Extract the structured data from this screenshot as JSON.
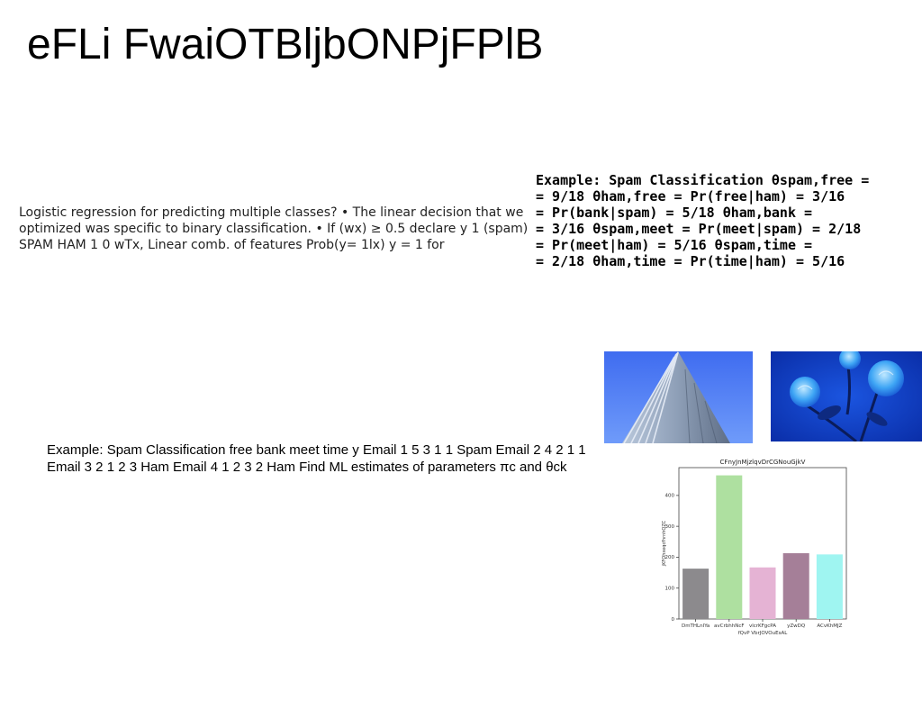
{
  "slide": {
    "title": "eFLi FwaiOTBljbONPjFPlB",
    "left_paragraph": "Logistic regression for predicting multiple classes? • The linear decision that we optimized was specific to binary classification. • If \u001f(w\u001fx) ≥ 0.5 declare y 1 (spam) SPAM HAM 1 0 wTx, Linear comb. of features Prob(y= 1lx) y = 1 for",
    "right_paragraph": "Example: Spam Classification θspam,free =\n= 9/18 θham,free = Pr(free|ham) = 3/16\n= Pr(bank|spam) = 5/18 θham,bank =\n= 3/16 θspam,meet = Pr(meet|spam) = 2/18\n= Pr(meet|ham) = 5/16 θspam,time =\n= 2/18 θham,time = Pr(time|ham) = 5/16",
    "bottom_paragraph": "Example: Spam Classification free bank meet time y Email 1 5 3 1 1 Spam Email 2 4 2 1 1 Email 3 2 1 2 3 Ham Email 4 1 2 3 2 Ham Find ML estimates of parameters πc and θck"
  },
  "images": {
    "building_photo": "building-photo",
    "roses_photo": "blue-roses-photo"
  },
  "chart_data": {
    "type": "bar",
    "title": "CFnyJnMjzlqvDrCGNouGjkV",
    "xlabel": "fQvP VbrJOVOuEsAL",
    "ylabel": "jKFOhxeqcfhrnhQZC",
    "categories": [
      "DmTHLnIYa",
      "avCrbhhNcF",
      "vlcrKFgcPA",
      "yZwDQ",
      "ACvKhMJZ"
    ],
    "values": [
      163,
      465,
      167,
      213,
      209
    ],
    "colors": [
      "#8c8a8d",
      "#aee0a0",
      "#e5b3d4",
      "#a57f98",
      "#9ff5f1"
    ],
    "ylim": [
      0,
      490
    ],
    "yticks": [
      0,
      100,
      200,
      300,
      400
    ],
    "grid": false
  }
}
